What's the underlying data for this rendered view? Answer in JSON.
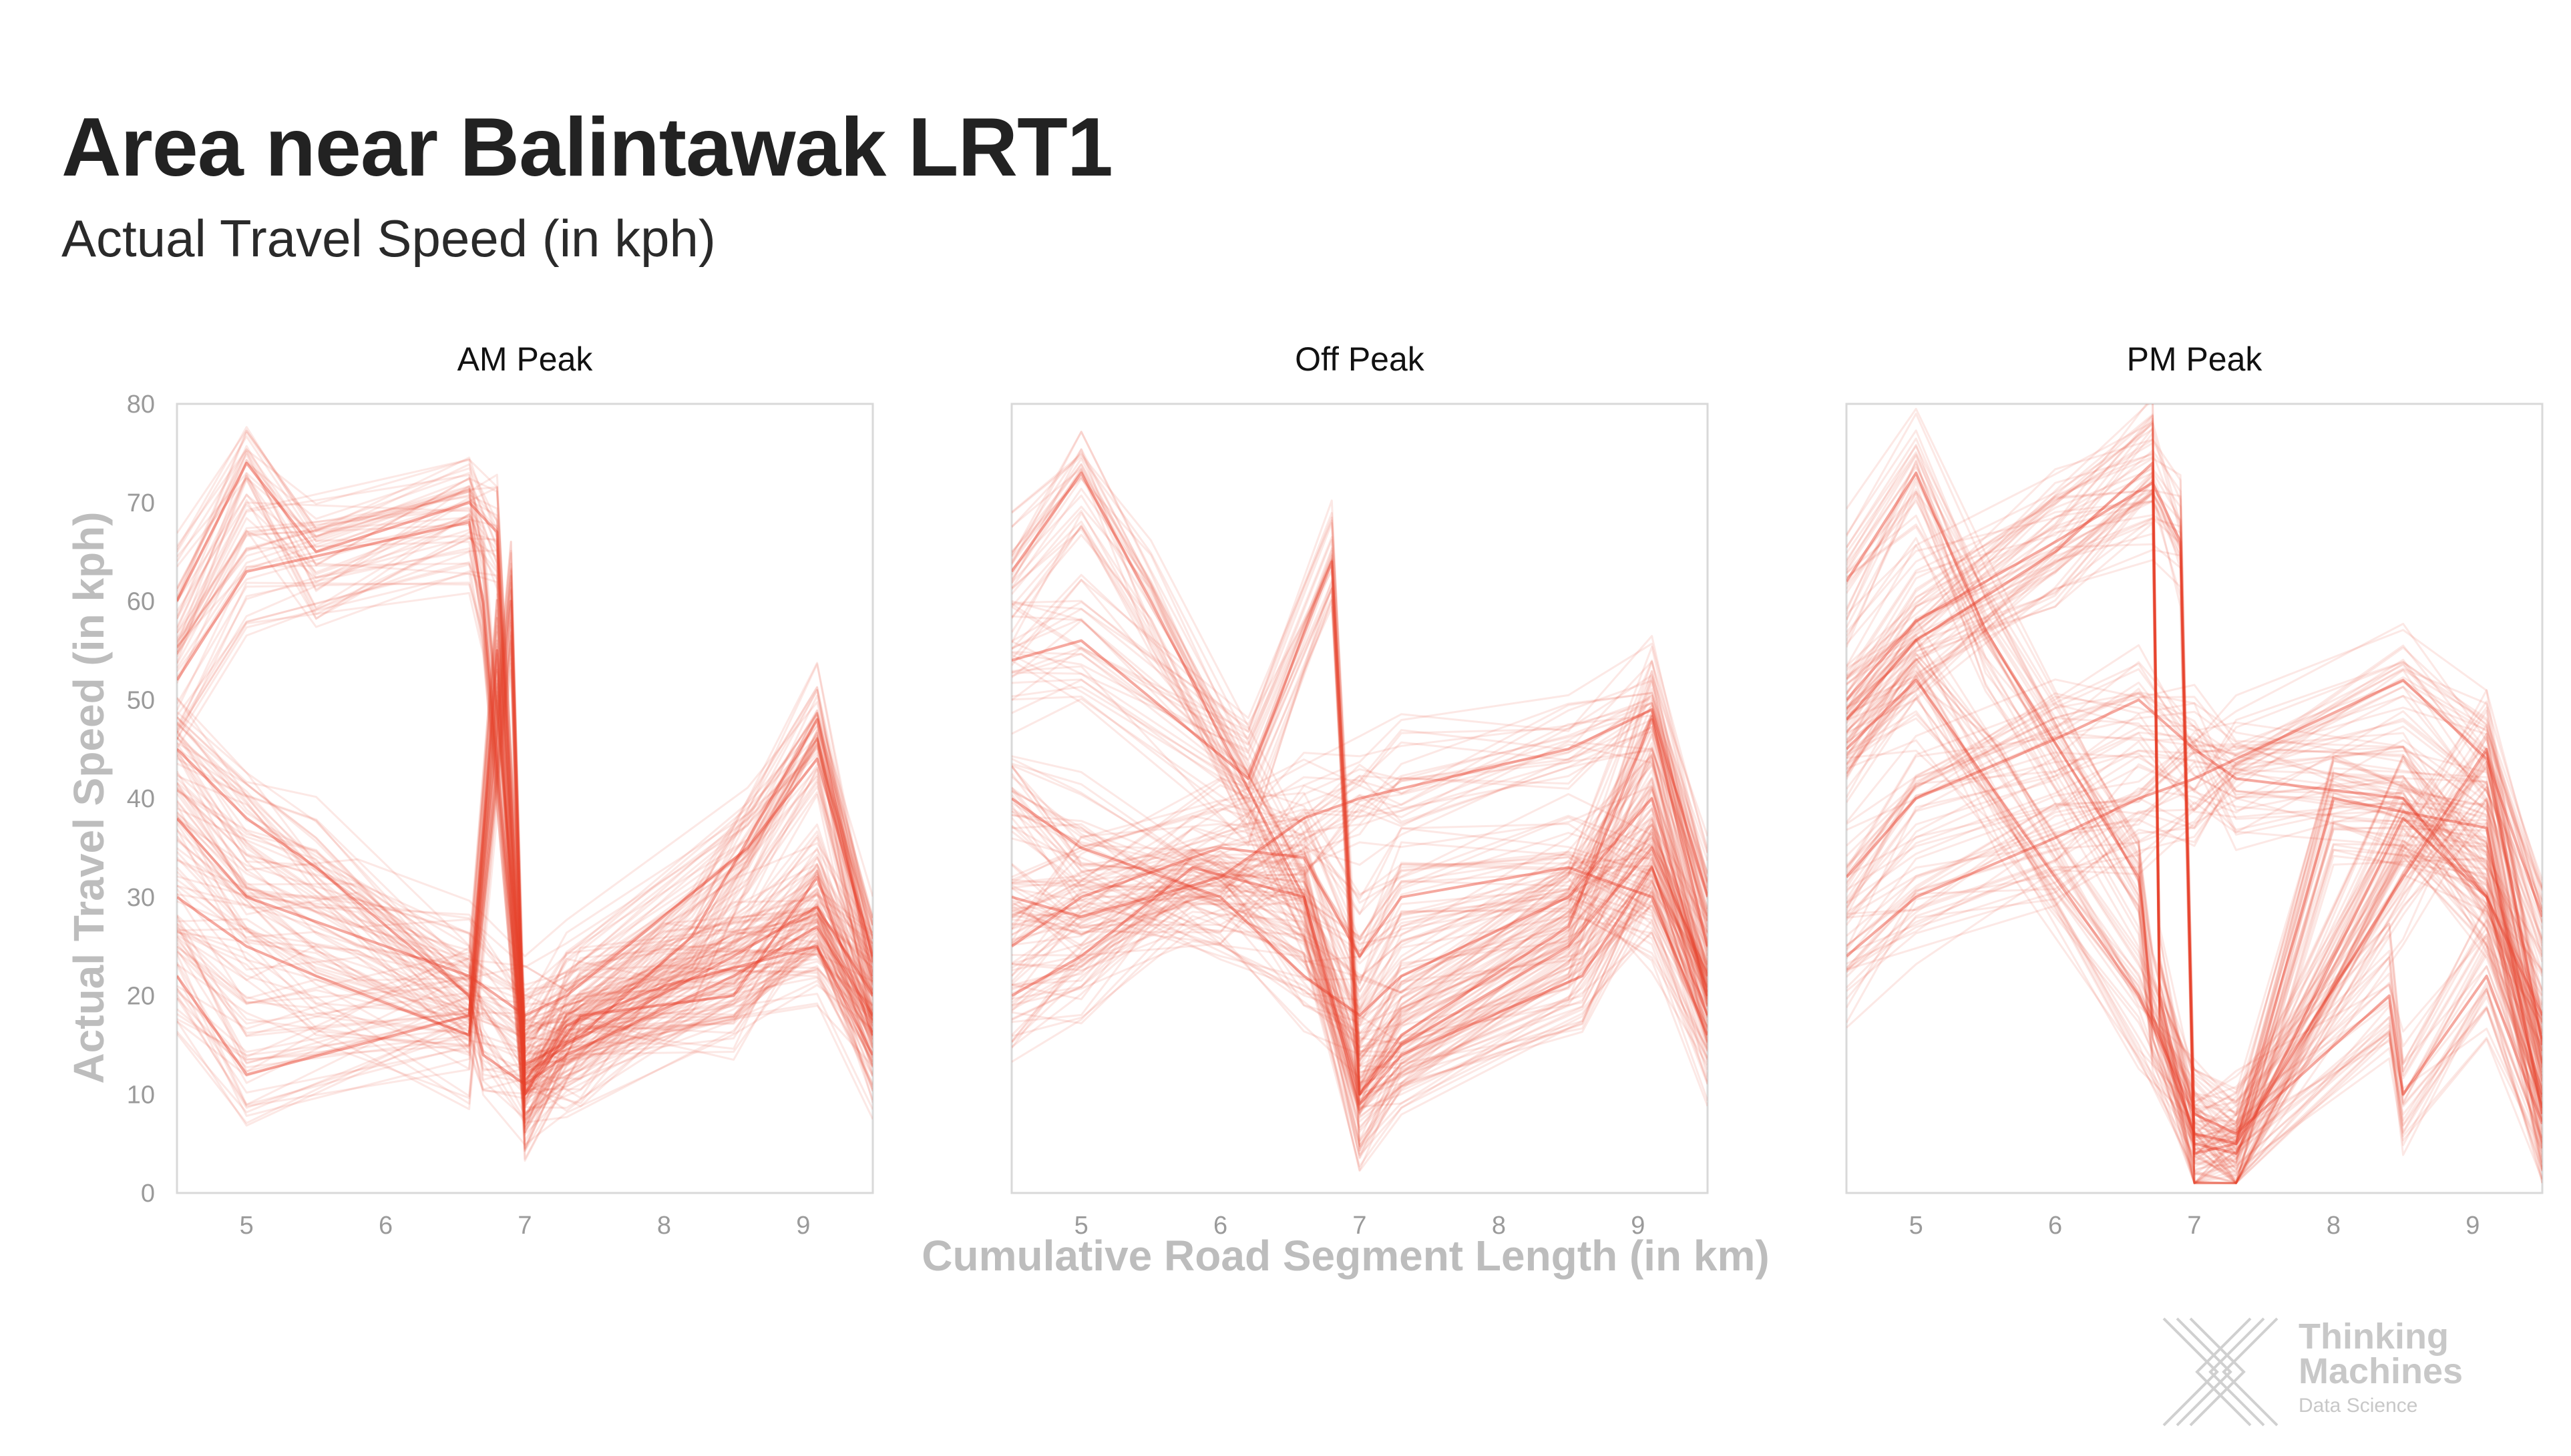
{
  "title": "Area near Balintawak LRT1",
  "subtitle": "Actual Travel Speed (in kph)",
  "colors": {
    "line": "#e8412c",
    "axis": "#d9d9d9",
    "tick": "#9a9a9a",
    "axis_title": "#bdbdbd"
  },
  "logo": {
    "line1": "Thinking",
    "line2": "Machines",
    "line3": "Data Science",
    "icon": "thinking-machines-logo-icon"
  },
  "chart_data": {
    "type": "line",
    "xlabel": "Cumulative Road Segment Length (in km)",
    "ylabel": "Actual Travel Speed (in kph)",
    "xlim": [
      4.5,
      9.5
    ],
    "ylim": [
      0,
      80
    ],
    "xticks": [
      5,
      6,
      7,
      8,
      9
    ],
    "yticks": [
      0,
      10,
      20,
      30,
      40,
      50,
      60,
      70,
      80
    ],
    "grid": false,
    "note": "Each panel overlays many semi-transparent trip lines; representative speed profiles listed.",
    "panels": [
      {
        "title": "AM Peak",
        "series": [
          {
            "x": [
              4.5,
              5.0,
              5.5,
              6.6,
              6.7,
              7.0,
              7.3,
              8.5,
              9.1,
              9.5
            ],
            "y": [
              45,
              38,
              33,
              20,
              14,
              11,
              14,
              22,
              27,
              18
            ]
          },
          {
            "x": [
              4.5,
              5.0,
              6.6,
              6.7,
              7.0,
              7.3,
              8.5,
              9.1,
              9.5
            ],
            "y": [
              52,
              63,
              68,
              60,
              12,
              15,
              24,
              29,
              20
            ]
          },
          {
            "x": [
              4.5,
              5.0,
              5.5,
              6.6,
              6.8,
              7.0,
              7.4,
              8.2,
              9.1,
              9.5
            ],
            "y": [
              60,
              74,
              65,
              70,
              67,
              13,
              16,
              26,
              48,
              22
            ]
          },
          {
            "x": [
              4.5,
              5.0,
              5.5,
              6.6,
              6.9,
              7.0,
              7.4,
              8.5,
              9.1,
              9.5
            ],
            "y": [
              30,
              25,
              22,
              16,
              60,
              10,
              18,
              20,
              32,
              16
            ]
          },
          {
            "x": [
              4.5,
              5.0,
              5.8,
              6.6,
              7.0,
              7.3,
              8.6,
              9.1,
              9.5
            ],
            "y": [
              38,
              30,
              26,
              22,
              18,
              20,
              35,
              44,
              24
            ]
          },
          {
            "x": [
              4.5,
              5.0,
              6.6,
              6.8,
              7.0,
              7.3,
              8.0,
              9.1,
              9.5
            ],
            "y": [
              22,
              12,
              18,
              55,
              10,
              17,
              21,
              25,
              14
            ]
          }
        ]
      },
      {
        "title": "Off Peak",
        "series": [
          {
            "x": [
              4.5,
              5.0,
              5.5,
              6.6,
              7.0,
              7.3,
              8.5,
              9.1,
              9.5
            ],
            "y": [
              63,
              73,
              60,
              30,
              10,
              15,
              25,
              35,
              22
            ]
          },
          {
            "x": [
              4.5,
              5.0,
              6.2,
              6.8,
              7.0,
              7.3,
              8.5,
              9.1,
              9.5
            ],
            "y": [
              54,
              56,
              42,
              64,
              10,
              16,
              27,
              48,
              25
            ]
          },
          {
            "x": [
              4.5,
              5.0,
              6.0,
              6.6,
              7.0,
              7.3,
              8.5,
              9.1,
              9.5
            ],
            "y": [
              40,
              35,
              30,
              22,
              18,
              22,
              30,
              40,
              20
            ]
          },
          {
            "x": [
              4.5,
              5.0,
              6.0,
              6.6,
              7.0,
              7.3,
              8.5,
              9.1,
              9.5
            ],
            "y": [
              30,
              28,
              32,
              38,
              40,
              41,
              45,
              49,
              30
            ]
          },
          {
            "x": [
              4.5,
              5.0,
              6.0,
              6.6,
              7.0,
              7.3,
              8.5,
              9.1,
              9.5
            ],
            "y": [
              25,
              30,
              35,
              34,
              24,
              30,
              33,
              30,
              16
            ]
          },
          {
            "x": [
              4.5,
              5.0,
              5.8,
              6.6,
              7.0,
              7.3,
              8.6,
              9.1,
              9.5
            ],
            "y": [
              20,
              24,
              33,
              30,
              9,
              14,
              22,
              33,
              18
            ]
          }
        ]
      },
      {
        "title": "PM Peak",
        "series": [
          {
            "x": [
              4.5,
              5.0,
              6.0,
              6.7,
              6.75,
              7.0,
              7.3,
              8.5,
              9.1,
              9.5
            ],
            "y": [
              48,
              56,
              65,
              74,
              20,
              5,
              4,
              38,
              30,
              10
            ]
          },
          {
            "x": [
              4.5,
              5.0,
              5.5,
              6.6,
              6.7,
              7.0,
              7.3,
              8.0,
              9.1,
              9.5
            ],
            "y": [
              62,
              73,
              57,
              32,
              18,
              6,
              5,
              40,
              37,
              8
            ]
          },
          {
            "x": [
              4.5,
              5.0,
              6.0,
              6.7,
              6.9,
              7.0,
              7.3,
              8.5,
              9.1,
              9.5
            ],
            "y": [
              50,
              58,
              66,
              72,
              66,
              4,
              5,
              32,
              45,
              15
            ]
          },
          {
            "x": [
              4.5,
              5.0,
              6.0,
              6.6,
              7.0,
              7.3,
              8.5,
              9.1,
              9.5
            ],
            "y": [
              24,
              30,
              36,
              40,
              42,
              44,
              52,
              44,
              28
            ]
          },
          {
            "x": [
              4.5,
              5.0,
              6.0,
              6.6,
              7.0,
              7.3,
              8.5,
              9.1,
              9.5
            ],
            "y": [
              32,
              40,
              46,
              50,
              45,
              42,
              40,
              30,
              18
            ]
          },
          {
            "x": [
              4.5,
              5.0,
              5.6,
              6.6,
              7.0,
              7.3,
              8.4,
              8.5,
              9.1,
              9.5
            ],
            "y": [
              45,
              52,
              40,
              20,
              8,
              6,
              20,
              10,
              22,
              7
            ]
          }
        ]
      }
    ]
  }
}
